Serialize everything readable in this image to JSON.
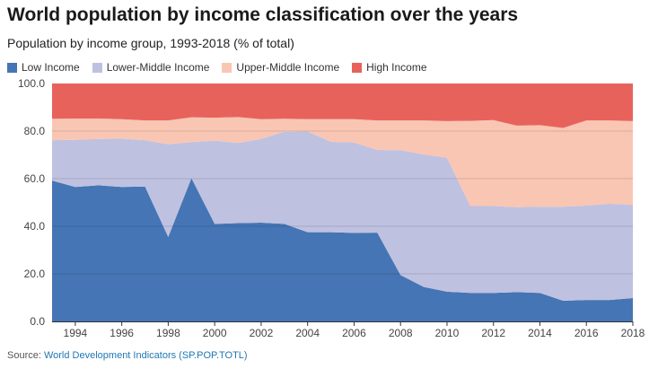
{
  "title": "World population by income classification over the years",
  "subtitle": "Population by income group, 1993-2018 (% of total)",
  "source": {
    "prefix": "Source: ",
    "link_text": "World Development Indicators (SP.POP.TOTL)"
  },
  "colors": {
    "low": "#4575b4",
    "lower_middle": "#bfc1e0",
    "upper_middle": "#f9c6b3",
    "high": "#e8625c"
  },
  "chart_data": {
    "type": "area",
    "stacked": true,
    "x": [
      1993,
      1994,
      1995,
      1996,
      1997,
      1998,
      1999,
      2000,
      2001,
      2002,
      2003,
      2004,
      2005,
      2006,
      2007,
      2008,
      2009,
      2010,
      2011,
      2012,
      2013,
      2014,
      2015,
      2016,
      2017,
      2018
    ],
    "series": [
      {
        "name": "Low Income",
        "color": "#4575b4",
        "values": [
          59.2,
          56.5,
          57.2,
          56.5,
          56.7,
          35.5,
          60.2,
          41.0,
          41.3,
          41.5,
          41.0,
          37.5,
          37.5,
          37.2,
          37.3,
          19.5,
          14.5,
          12.5,
          12.0,
          12.0,
          12.3,
          12.0,
          8.7,
          9.0,
          9.0,
          9.8
        ]
      },
      {
        "name": "Lower-Middle Income",
        "color": "#bfc1e0",
        "values": [
          17.0,
          19.8,
          19.5,
          20.3,
          19.5,
          39.0,
          15.2,
          35.0,
          33.7,
          35.2,
          38.7,
          42.3,
          38.0,
          38.0,
          34.8,
          52.5,
          55.7,
          56.3,
          36.5,
          36.5,
          35.7,
          36.2,
          39.5,
          39.7,
          40.5,
          39.2
        ]
      },
      {
        "name": "Upper-Middle Income",
        "color": "#f9c6b3",
        "values": [
          9.0,
          9.0,
          8.6,
          8.2,
          8.3,
          10.0,
          10.4,
          9.6,
          10.9,
          8.3,
          5.5,
          5.2,
          9.5,
          9.8,
          12.4,
          12.5,
          14.3,
          15.4,
          35.8,
          36.1,
          34.3,
          34.3,
          33.1,
          35.8,
          35.0,
          35.2
        ]
      },
      {
        "name": "High Income",
        "color": "#e8625c",
        "values": [
          14.8,
          14.7,
          14.7,
          15.0,
          15.5,
          15.5,
          14.2,
          14.4,
          14.1,
          15.0,
          14.8,
          15.0,
          15.0,
          15.0,
          15.5,
          15.5,
          15.5,
          15.8,
          15.7,
          15.4,
          17.7,
          17.5,
          18.7,
          15.5,
          15.5,
          15.8
        ]
      }
    ],
    "ylim": [
      0,
      100
    ],
    "yticks": [
      "0.0",
      "20.0",
      "40.0",
      "60.0",
      "80.0",
      "100.0"
    ],
    "xticks": [
      "1994",
      "1996",
      "1998",
      "2000",
      "2002",
      "2004",
      "2006",
      "2008",
      "2010",
      "2012",
      "2014",
      "2016",
      "2018"
    ],
    "grid": true,
    "legend_position": "top-left"
  }
}
